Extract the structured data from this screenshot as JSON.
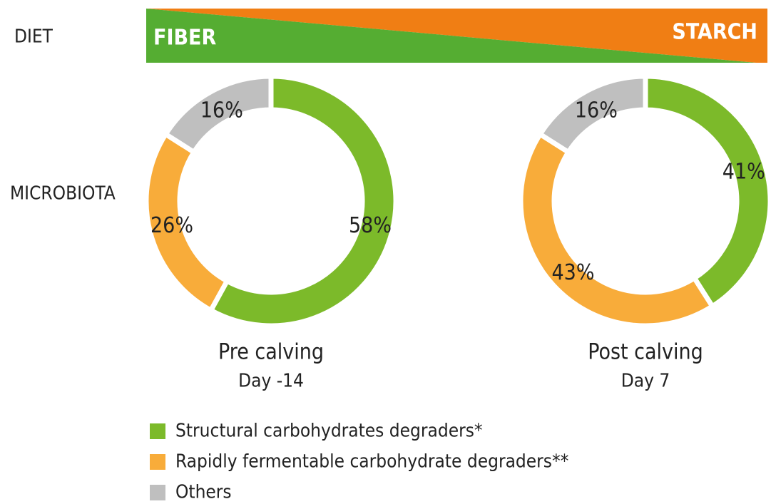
{
  "diet": {
    "label": "DIET",
    "left": "FIBER",
    "right": "STARCH",
    "left_color": "#55ad32",
    "right_color": "#f07e14"
  },
  "row_label": "MICROBIOTA",
  "legend": {
    "items": [
      "Structural carbohydrates degraders*",
      "Rapidly fermentable carbohydrate degraders**",
      "Others"
    ],
    "colors": [
      "#7cba2a",
      "#f8ac3a",
      "#bfbfbf"
    ]
  },
  "chart_data": [
    {
      "type": "donut",
      "title": "Pre calving",
      "subtitle": "Day -14",
      "values": [
        58,
        26,
        16
      ],
      "value_labels": [
        "58%",
        "26%",
        "16%"
      ]
    },
    {
      "type": "donut",
      "title": "Post calving",
      "subtitle": "Day 7",
      "values": [
        41,
        43,
        16
      ],
      "value_labels": [
        "41%",
        "43%",
        "16%"
      ]
    }
  ]
}
